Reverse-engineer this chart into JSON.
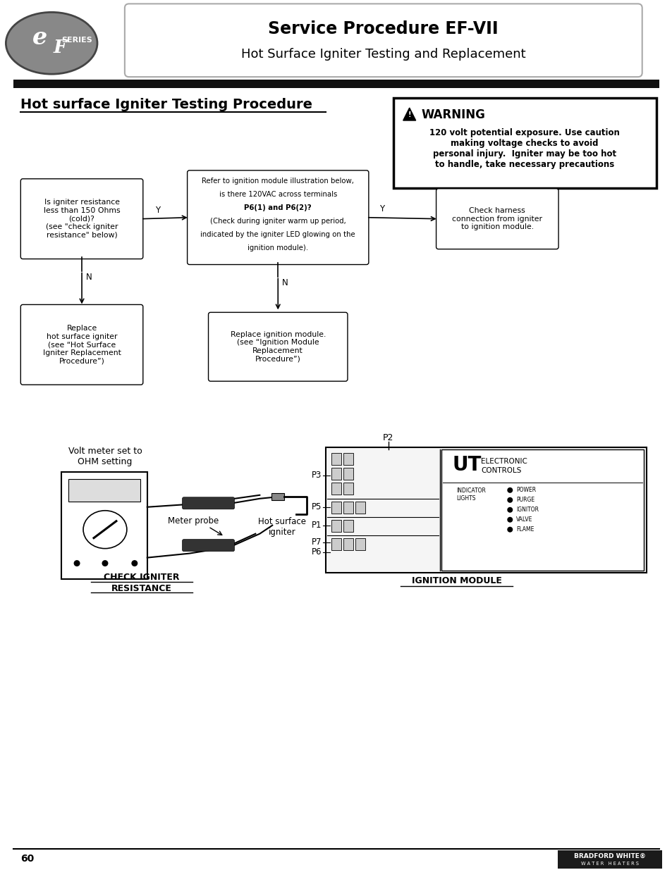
{
  "page_bg": "#ffffff",
  "header_title_line1": "Service Procedure EF-VII",
  "header_title_line2": "Hot Surface Igniter Testing and Replacement",
  "section_title": "Hot surface Igniter Testing Procedure",
  "warning_title": "WARNING",
  "warning_text": "120 volt potential exposure. Use caution\nmaking voltage checks to avoid\npersonal injury.  Igniter may be too hot\nto handle, take necessary precautions",
  "box1_text": "Is igniter resistance\nless than 150 Ohms\n(cold)?\n(see \"check igniter\nresistance\" below)",
  "box2_line1": "Refer to ignition module illustration below,",
  "box2_line2": "is there 120VAC across terminals",
  "box2_line3": "P6(1) and P6(2)?",
  "box2_line4": "(Check during igniter warm up period,",
  "box2_line5": "indicated by the igniter LED glowing on the",
  "box2_line6": "ignition module).",
  "box3_text": "Check harness\nconnection from igniter\nto ignition module.",
  "box4_text": "Replace\nhot surface igniter\n(see “Hot Surface\nIgniter Replacement\nProcedure”)",
  "box5_text": "Replace ignition module.\n(see “Ignition Module\nReplacement\nProcedure”)",
  "label_volt_meter": "Volt meter set to\nOHM setting",
  "label_meter_probe": "Meter probe",
  "label_hot_surface": "Hot surface\nigniter",
  "label_check_igniter_line1": "CHECK IGNITER",
  "label_check_igniter_line2": "RESISTANCE",
  "label_ignition_module": "IGNITION MODULE",
  "footer_page": "60",
  "dark_bar_color": "#111111"
}
